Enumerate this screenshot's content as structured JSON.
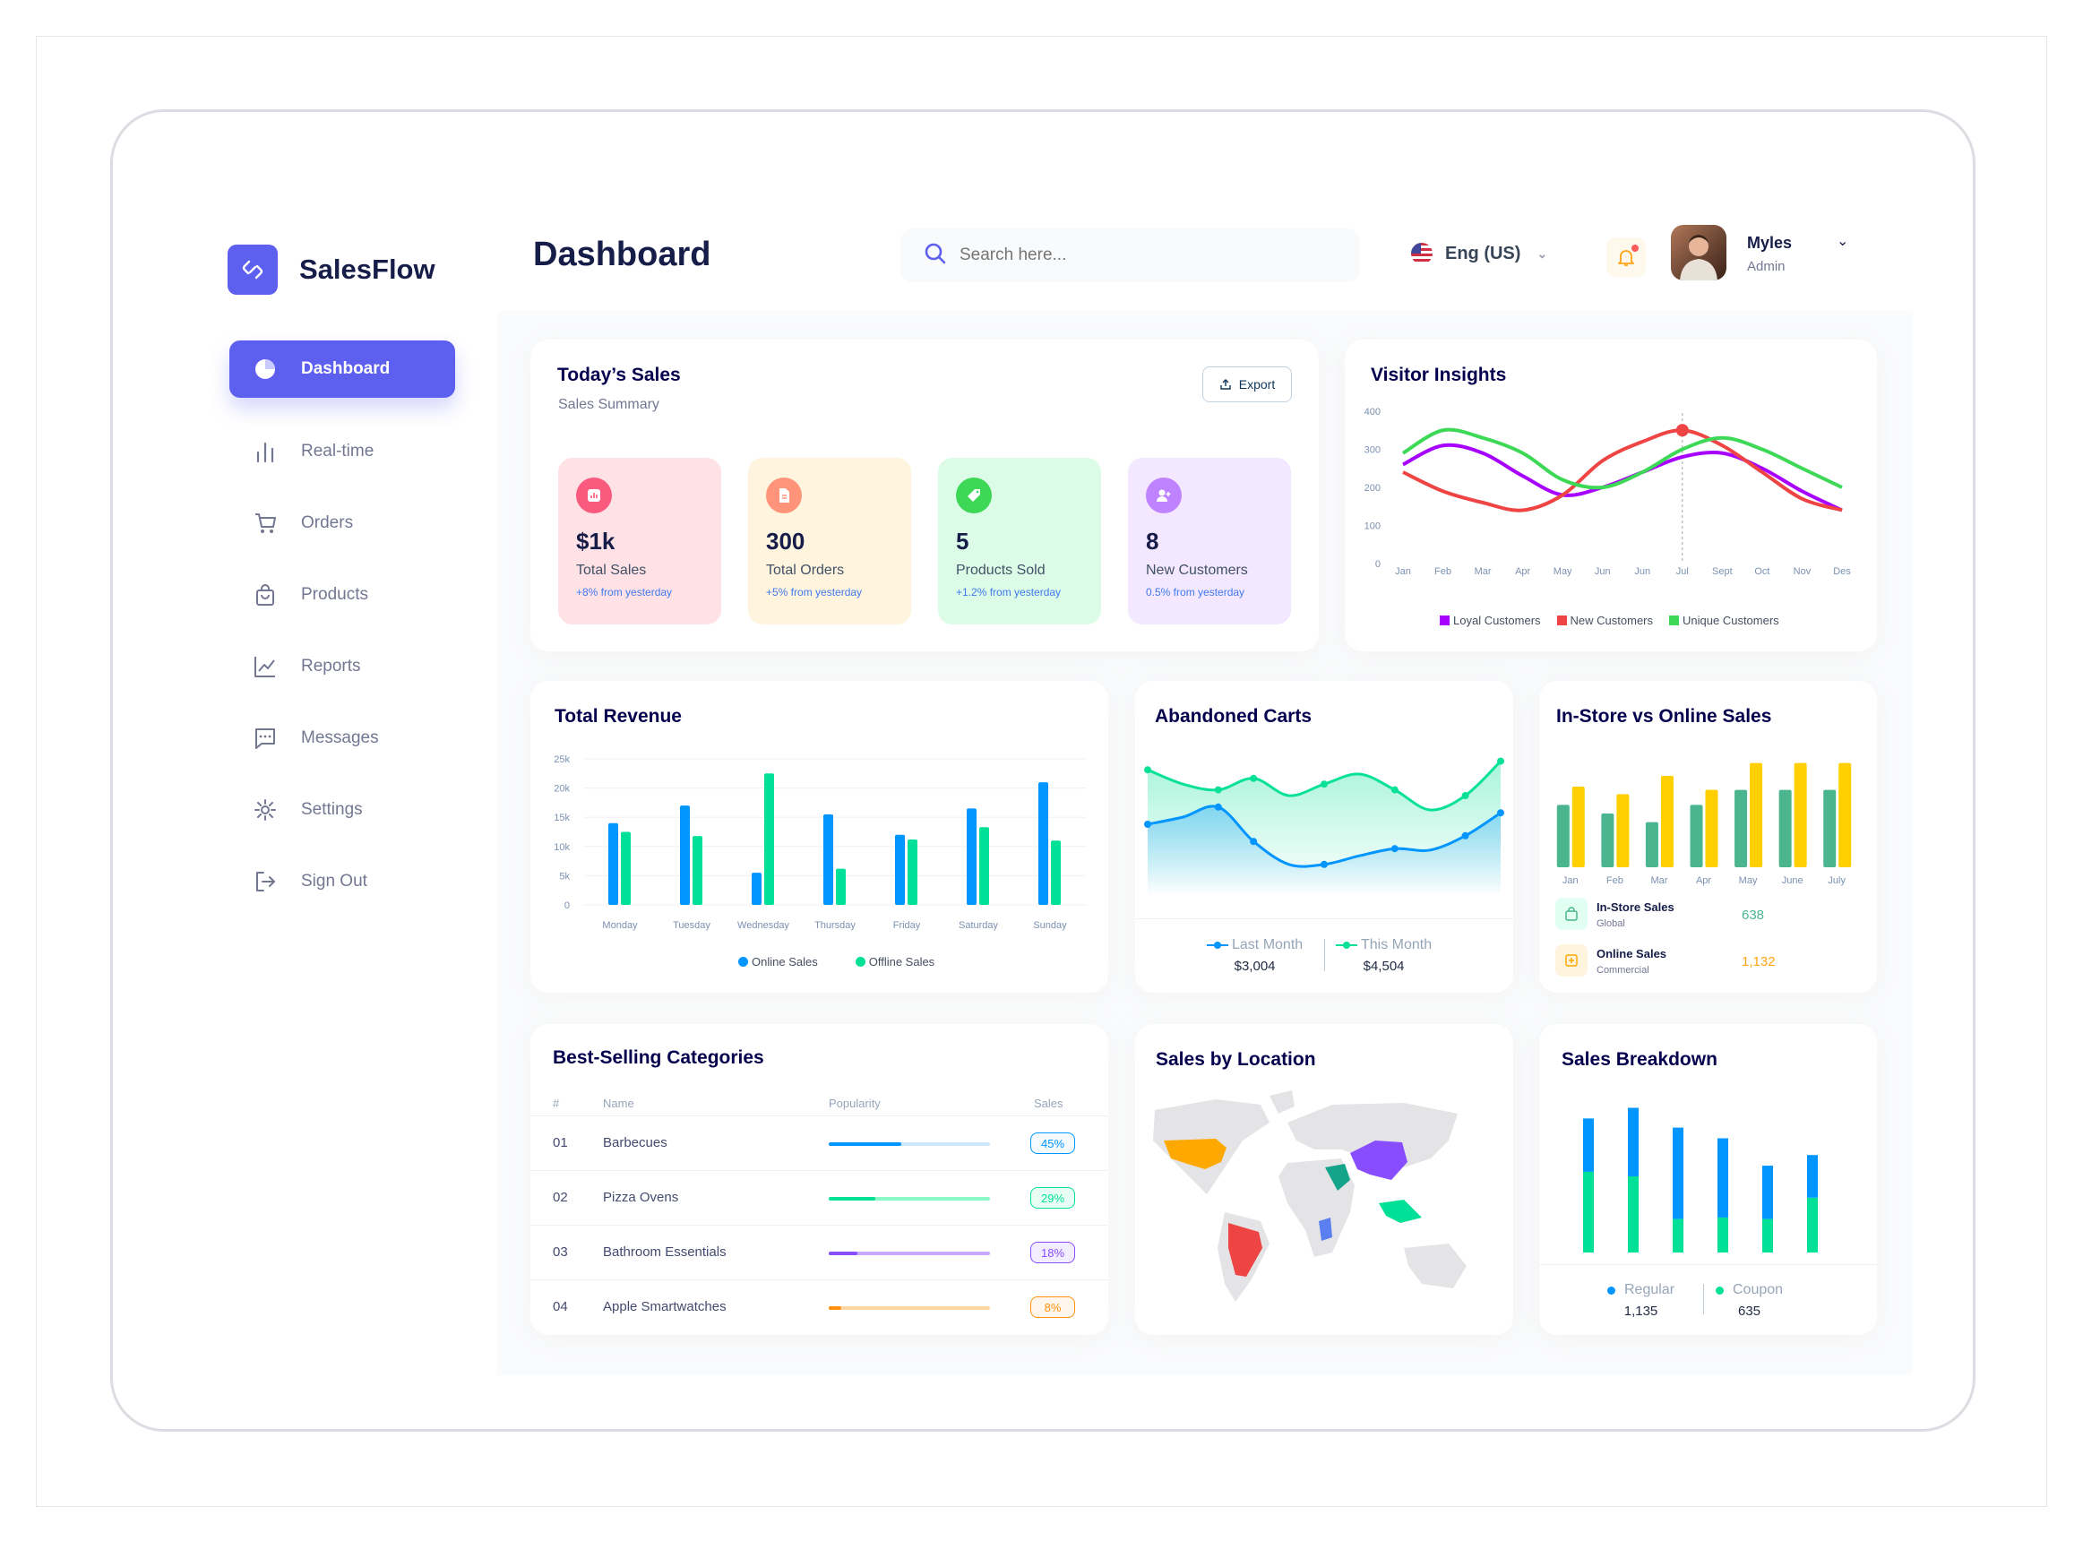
{
  "brand": {
    "name": "SalesFlow",
    "color": "#5d5fef"
  },
  "header": {
    "title": "Dashboard",
    "search_placeholder": "Search here...",
    "language": "Eng (US)",
    "user_name": "Myles",
    "user_role": "Admin"
  },
  "sidebar": {
    "items": [
      {
        "label": "Dashboard",
        "icon": "pie-chart-icon",
        "active": true
      },
      {
        "label": "Real-time",
        "icon": "bar-chart-icon"
      },
      {
        "label": "Orders",
        "icon": "cart-icon"
      },
      {
        "label": "Products",
        "icon": "shopping-bag-icon"
      },
      {
        "label": "Reports",
        "icon": "line-chart-icon"
      },
      {
        "label": "Messages",
        "icon": "message-icon"
      },
      {
        "label": "Settings",
        "icon": "gear-icon"
      },
      {
        "label": "Sign Out",
        "icon": "sign-out-icon"
      }
    ]
  },
  "todays_sales": {
    "title": "Today’s Sales",
    "subtitle": "Sales Summary",
    "export_label": "Export",
    "stats": [
      {
        "value": "$1k",
        "label": "Total Sales",
        "change": "+8% from yesterday",
        "bg": "#ffe2e5",
        "icon_bg": "#fa5a7d",
        "icon": "bar-chart-icon"
      },
      {
        "value": "300",
        "label": "Total Orders",
        "change": "+5% from yesterday",
        "bg": "#fff4de",
        "icon_bg": "#ff947a",
        "icon": "document-icon"
      },
      {
        "value": "5",
        "label": "Products Sold",
        "change": "+1.2% from yesterday",
        "bg": "#dcfce7",
        "icon_bg": "#3cd856",
        "icon": "tag-icon"
      },
      {
        "value": "8",
        "label": "New Customers",
        "change": "0.5% from yesterday",
        "bg": "#f3e8ff",
        "icon_bg": "#bf83ff",
        "icon": "add-user-icon"
      }
    ]
  },
  "visitor_insights": {
    "title": "Visitor Insights",
    "y_ticks": [
      "400",
      "300",
      "200",
      "100",
      "0"
    ],
    "months": [
      "Jan",
      "Feb",
      "Mar",
      "Apr",
      "May",
      "Jun",
      "Jun",
      "Jul",
      "Sept",
      "Oct",
      "Nov",
      "Des"
    ],
    "legend": [
      {
        "name": "Loyal Customers",
        "color": "#a700ff"
      },
      {
        "name": "New Customers",
        "color": "#ef4444"
      },
      {
        "name": "Unique Customers",
        "color": "#3cd856"
      }
    ]
  },
  "total_revenue": {
    "title": "Total Revenue",
    "legend": [
      {
        "name": "Online Sales",
        "color": "#0095ff"
      },
      {
        "name": "Offline Sales",
        "color": "#00e096"
      }
    ]
  },
  "abandoned_carts": {
    "title": "Abandoned Carts",
    "last_label": "Last Month",
    "last_value": "$3,004",
    "this_label": "This Month",
    "this_value": "$4,504"
  },
  "instore_online": {
    "title": "In-Store vs Online Sales",
    "months": [
      "Jan",
      "Feb",
      "Mar",
      "Apr",
      "May",
      "June",
      "July"
    ],
    "rows": [
      {
        "name": "In-Store Sales",
        "sub": "Global",
        "value": "638",
        "color": "#4ab58e"
      },
      {
        "name": "Online Sales",
        "sub": "Commercial",
        "value": "1,132",
        "color": "#ffcf00"
      }
    ]
  },
  "best_selling": {
    "title": "Best-Selling Categories",
    "headers": [
      "#",
      "Name",
      "Popularity",
      "Sales"
    ],
    "rows": [
      {
        "rank": "01",
        "name": "Barbecues",
        "pct": "45%",
        "fill": 0.45,
        "color": "#0095ff",
        "track": "#cde7ff"
      },
      {
        "rank": "02",
        "name": "Pizza Ovens",
        "pct": "29%",
        "fill": 0.29,
        "color": "#00e096",
        "track": "#8cfac7"
      },
      {
        "rank": "03",
        "name": "Bathroom Essentials",
        "pct": "18%",
        "fill": 0.18,
        "color": "#884dff",
        "track": "#c5a8ff"
      },
      {
        "rank": "04",
        "name": "Apple Smartwatches",
        "pct": "8%",
        "fill": 0.08,
        "color": "#ff8f0d",
        "track": "#ffd5a4"
      }
    ]
  },
  "sales_by_location": {
    "title": "Sales by Location"
  },
  "sales_breakdown": {
    "title": "Sales Breakdown",
    "regular_label": "Regular",
    "regular_value": "1,135",
    "coupon_label": "Coupon",
    "coupon_value": "635"
  },
  "chart_data": [
    {
      "type": "line",
      "title": "Visitor Insights",
      "x": [
        "Jan",
        "Feb",
        "Mar",
        "Apr",
        "May",
        "Jun",
        "Jun",
        "Jul",
        "Sept",
        "Oct",
        "Nov",
        "Des"
      ],
      "ylim": [
        0,
        400
      ],
      "series": [
        {
          "name": "Loyal Customers",
          "values": [
            260,
            310,
            290,
            230,
            180,
            200,
            240,
            280,
            290,
            250,
            190,
            140
          ]
        },
        {
          "name": "New Customers",
          "values": [
            240,
            190,
            160,
            140,
            180,
            270,
            320,
            350,
            310,
            240,
            170,
            140
          ]
        },
        {
          "name": "Unique Customers",
          "values": [
            290,
            350,
            330,
            290,
            220,
            200,
            240,
            300,
            330,
            300,
            250,
            200
          ]
        }
      ]
    },
    {
      "type": "bar",
      "title": "Total Revenue",
      "categories": [
        "Monday",
        "Tuesday",
        "Wednesday",
        "Thursday",
        "Friday",
        "Saturday",
        "Sunday"
      ],
      "y_ticks": [
        "25k",
        "20k",
        "15k",
        "10k",
        "5k",
        "0"
      ],
      "ylim": [
        0,
        25000
      ],
      "series": [
        {
          "name": "Online Sales",
          "values": [
            14000,
            17000,
            5500,
            15500,
            12000,
            16500,
            21000
          ]
        },
        {
          "name": "Offline Sales",
          "values": [
            12500,
            11800,
            22500,
            6200,
            11200,
            13300,
            11000
          ]
        }
      ]
    },
    {
      "type": "area",
      "title": "Abandoned Carts",
      "x": [
        1,
        2,
        3,
        4,
        5,
        6,
        7,
        8,
        9,
        10,
        11
      ],
      "ylim": [
        0,
        100
      ],
      "series": [
        {
          "name": "Last Month",
          "values": [
            50,
            55,
            62,
            38,
            22,
            22,
            28,
            33,
            32,
            42,
            58
          ]
        },
        {
          "name": "This Month",
          "values": [
            88,
            78,
            74,
            82,
            70,
            78,
            85,
            74,
            60,
            70,
            94
          ]
        }
      ]
    },
    {
      "type": "bar",
      "title": "In-Store vs Online Sales",
      "categories": [
        "Jan",
        "Feb",
        "Mar",
        "Apr",
        "May",
        "June",
        "July"
      ],
      "series": [
        {
          "name": "In-Store Sales",
          "values": [
            58,
            50,
            42,
            58,
            72,
            72,
            72
          ]
        },
        {
          "name": "Online Sales",
          "values": [
            75,
            68,
            85,
            72,
            97,
            97,
            97
          ]
        }
      ]
    },
    {
      "type": "bar",
      "title": "Sales Breakdown",
      "categories": [
        "1",
        "2",
        "3",
        "4",
        "5",
        "6"
      ],
      "series": [
        {
          "name": "Regular",
          "values": [
            35,
            45,
            60,
            52,
            35,
            28
          ]
        },
        {
          "name": "Coupon",
          "values": [
            53,
            50,
            22,
            23,
            22,
            36
          ]
        }
      ]
    }
  ],
  "colors": {
    "accent": "#5d5fef",
    "online": "#0095ff",
    "offline": "#00e096"
  }
}
